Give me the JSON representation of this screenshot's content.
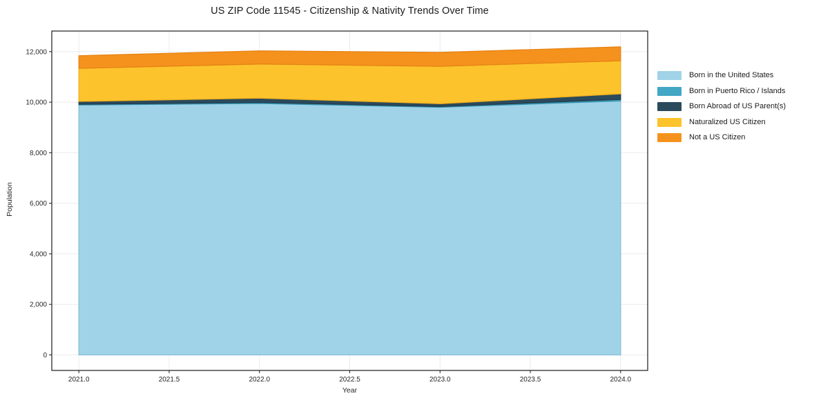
{
  "chart_data": {
    "type": "area",
    "title": "US ZIP Code 11545 - Citizenship & Nativity Trends Over Time",
    "xlabel": "Year",
    "ylabel": "Population",
    "x": [
      2021,
      2022,
      2023,
      2024
    ],
    "series": [
      {
        "name": "Born in the United States",
        "color": "#A0D3E8",
        "edge": "#86BFD9",
        "values": [
          9890,
          9950,
          9800,
          10050
        ]
      },
      {
        "name": "Born in Puerto Rico / Islands",
        "color": "#41A7C5",
        "edge": "#3492AF",
        "values": [
          30,
          40,
          30,
          60
        ]
      },
      {
        "name": "Born Abroad of US Parent(s)",
        "color": "#2B4A5C",
        "edge": "#233D4D",
        "values": [
          110,
          170,
          110,
          220
        ]
      },
      {
        "name": "Naturalized US Citizen",
        "color": "#FCC32D",
        "edge": "#F0B01C",
        "values": [
          1310,
          1350,
          1480,
          1310
        ]
      },
      {
        "name": "Not a US Citizen",
        "color": "#F5921E",
        "edge": "#E68213",
        "values": [
          500,
          520,
          550,
          550
        ]
      }
    ],
    "stacked": true,
    "xticks": [
      2021.0,
      2021.5,
      2022.0,
      2022.5,
      2023.0,
      2023.5,
      2024.0
    ],
    "xtick_labels": [
      "2021.0",
      "2021.5",
      "2022.0",
      "2022.5",
      "2023.0",
      "2023.5",
      "2024.0"
    ],
    "yticks": [
      0,
      2000,
      4000,
      6000,
      8000,
      10000,
      12000
    ],
    "ytick_labels": [
      "0",
      "2,000",
      "4,000",
      "6,000",
      "8,000",
      "10,000",
      "12,000"
    ],
    "xlim": [
      2020.85,
      2024.15
    ],
    "ylim": [
      -615,
      12815
    ],
    "grid": true,
    "grid_color": "#ebebeb",
    "axis_color": "#1a1a1a",
    "tick_text_color": "#262626",
    "legend_position": "right-outside"
  }
}
